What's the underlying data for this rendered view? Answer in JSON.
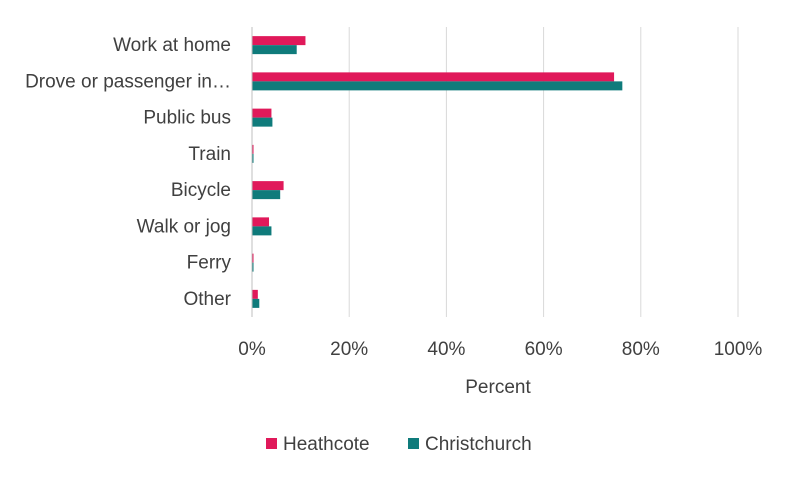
{
  "chart_data": {
    "type": "bar",
    "orientation": "horizontal",
    "categories": [
      "Work at home",
      "Drove or passenger in…",
      "Public bus",
      "Train",
      "Bicycle",
      "Walk or jog",
      "Ferry",
      "Other"
    ],
    "series": [
      {
        "name": "Heathcote",
        "color": "#e0195a",
        "values": [
          11,
          74.5,
          4,
          0,
          6.5,
          3.5,
          0,
          1.2
        ]
      },
      {
        "name": "Christchurch",
        "color": "#0f7b7b",
        "values": [
          9.2,
          76.2,
          4.2,
          0.3,
          5.8,
          4,
          0.2,
          1.5
        ]
      }
    ],
    "xlabel": "Percent",
    "ylabel": "",
    "xlim": [
      0,
      100
    ],
    "xticks": [
      0,
      20,
      40,
      60,
      80,
      100
    ],
    "xtick_labels": [
      "0%",
      "20%",
      "40%",
      "60%",
      "80%",
      "100%"
    ],
    "grid": "vertical",
    "legend_position": "bottom"
  }
}
